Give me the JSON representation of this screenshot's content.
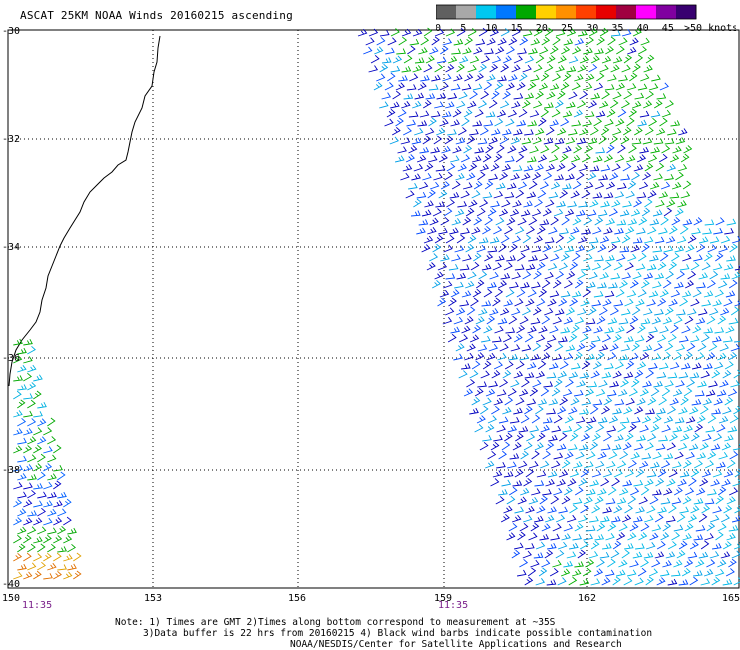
{
  "title": "ASCAT 25KM NOAA Winds 20160215 ascending",
  "colorbar": {
    "labels": [
      "0",
      "5",
      "10",
      "15",
      "20",
      "25",
      "30",
      "35",
      "40",
      "45",
      ">50 knots"
    ],
    "colors": [
      "#606060",
      "#a8a8a8",
      "#00c8f0",
      "#0078ff",
      "#00a800",
      "#ffd000",
      "#ff9000",
      "#ff4000",
      "#e80000",
      "#a00040",
      "#ff00ff",
      "#8000a0",
      "#380070"
    ]
  },
  "axes": {
    "lat_labels": [
      "-30",
      "-32",
      "-34",
      "-36",
      "-38",
      "-40"
    ],
    "lon_labels": [
      "150",
      "153",
      "156",
      "159",
      "162",
      "165"
    ]
  },
  "pass_times": [
    "11:35",
    "11:35"
  ],
  "notes": {
    "line1": "Note: 1) Times are GMT 2)Times along bottom correspond to measurement at ~35S",
    "line2": "3)Data buffer is 22 hrs from 20160215 4) Black wind barbs indicate possible contamination",
    "line3": "NOAA/NESDIS/Center for Satellite Applications and Research"
  }
}
